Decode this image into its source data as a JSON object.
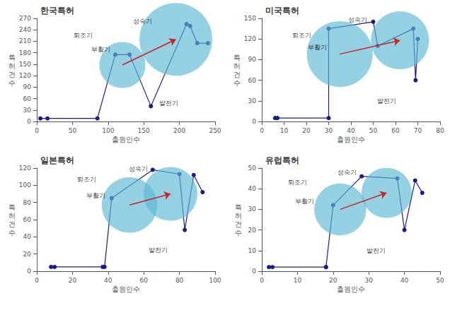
{
  "chart_data": [
    {
      "type": "line",
      "title": "한국특허",
      "xlabel": "출원인수",
      "ylabel": "특\n허\n건\n수",
      "xlim": [
        0,
        250
      ],
      "ylim": [
        0,
        270
      ],
      "xticks": [
        0,
        50,
        100,
        150,
        200,
        250
      ],
      "yticks": [
        0,
        30,
        60,
        90,
        120,
        150,
        180,
        210,
        240,
        270
      ],
      "grid": false,
      "series": [
        {
          "type": "line",
          "color": "#1a1a8c",
          "marker": "circle",
          "x": [
            5,
            15,
            85,
            110,
            130,
            160,
            210,
            215,
            225,
            240
          ],
          "values": [
            8,
            8,
            8,
            175,
            175,
            40,
            255,
            250,
            205,
            205
          ]
        },
        {
          "type": "scatter",
          "color": "#5bb8d4",
          "marker": "circle",
          "x": [
            120,
            195
          ],
          "values": [
            148,
            215
          ],
          "size": [
            2200,
            5500
          ]
        }
      ],
      "arrows": [
        {
          "from": [
            120,
            148
          ],
          "to": [
            195,
            215
          ],
          "color": "#cc2222"
        }
      ],
      "annotations": [
        {
          "text": "성숙기",
          "x": 148,
          "y": 262
        },
        {
          "text": "퇴조기",
          "x": 65,
          "y": 225
        },
        {
          "text": "부활기",
          "x": 90,
          "y": 188
        },
        {
          "text": "발전기",
          "x": 185,
          "y": 48
        }
      ]
    },
    {
      "type": "line",
      "title": "미국특허",
      "xlabel": "출원인수",
      "ylabel": "특\n허\n건\n수",
      "xlim": [
        0,
        80
      ],
      "ylim": [
        0,
        150
      ],
      "xticks": [
        0,
        10,
        20,
        30,
        40,
        50,
        60,
        70,
        80
      ],
      "yticks": [
        0,
        30,
        60,
        90,
        120,
        150
      ],
      "grid": false,
      "series": [
        {
          "type": "line",
          "color": "#1a1a8c",
          "marker": "circle",
          "x": [
            6,
            7,
            30,
            30,
            50,
            52,
            68,
            69,
            70
          ],
          "values": [
            5,
            5,
            5,
            135,
            145,
            110,
            135,
            60,
            120
          ]
        },
        {
          "type": "scatter",
          "color": "#5bb8d4",
          "marker": "circle",
          "x": [
            35,
            62
          ],
          "values": [
            98,
            118
          ],
          "size": [
            4500,
            3500
          ]
        }
      ],
      "arrows": [
        {
          "from": [
            35,
            98
          ],
          "to": [
            62,
            118
          ],
          "color": "#cc2222"
        }
      ],
      "annotations": [
        {
          "text": "성숙기",
          "x": 43,
          "y": 148
        },
        {
          "text": "퇴조기",
          "x": 18,
          "y": 125
        },
        {
          "text": "부활기",
          "x": 25,
          "y": 108
        },
        {
          "text": "발전기",
          "x": 56,
          "y": 30
        }
      ]
    },
    {
      "type": "line",
      "title": "일본특허",
      "xlabel": "출원인수",
      "ylabel": "특\n허\n건\n수",
      "xlim": [
        0,
        100
      ],
      "ylim": [
        0,
        120
      ],
      "xticks": [
        0,
        20,
        40,
        60,
        80,
        100
      ],
      "yticks": [
        0,
        20,
        40,
        60,
        80,
        100,
        120
      ],
      "grid": false,
      "series": [
        {
          "type": "line",
          "color": "#1a1a8c",
          "marker": "circle",
          "x": [
            8,
            10,
            37,
            38,
            42,
            65,
            80,
            83,
            88,
            93
          ],
          "values": [
            5,
            5,
            5,
            5,
            85,
            118,
            113,
            48,
            112,
            92
          ]
        },
        {
          "type": "scatter",
          "color": "#5bb8d4",
          "marker": "circle",
          "x": [
            52,
            75
          ],
          "values": [
            77,
            90
          ],
          "size": [
            3200,
            3000
          ]
        }
      ],
      "arrows": [
        {
          "from": [
            52,
            77
          ],
          "to": [
            75,
            90
          ],
          "color": "#cc2222"
        }
      ],
      "annotations": [
        {
          "text": "성숙기",
          "x": 57,
          "y": 119
        },
        {
          "text": "퇴조기",
          "x": 28,
          "y": 107
        },
        {
          "text": "부활기",
          "x": 33,
          "y": 88
        },
        {
          "text": "발전기",
          "x": 68,
          "y": 25
        }
      ]
    },
    {
      "type": "line",
      "title": "유럽특허",
      "xlabel": "출원인수",
      "ylabel": "특\n허\n건\n수",
      "xlim": [
        0,
        50
      ],
      "ylim": [
        0,
        50
      ],
      "xticks": [
        0,
        10,
        20,
        30,
        40,
        50
      ],
      "yticks": [
        0,
        10,
        20,
        30,
        40,
        50
      ],
      "grid": false,
      "series": [
        {
          "type": "line",
          "color": "#1a1a8c",
          "marker": "circle",
          "x": [
            2,
            3,
            18,
            18,
            20,
            28,
            38,
            40,
            43,
            45
          ],
          "values": [
            2,
            2,
            2,
            2,
            32,
            46,
            45,
            20,
            44,
            38
          ]
        },
        {
          "type": "scatter",
          "color": "#5bb8d4",
          "marker": "circle",
          "x": [
            22,
            35
          ],
          "values": [
            30,
            38
          ],
          "size": [
            2800,
            2600
          ]
        }
      ],
      "arrows": [
        {
          "from": [
            22,
            30
          ],
          "to": [
            35,
            38
          ],
          "color": "#cc2222"
        }
      ],
      "annotations": [
        {
          "text": "성숙기",
          "x": 24,
          "y": 48
        },
        {
          "text": "퇴조기",
          "x": 10,
          "y": 43
        },
        {
          "text": "부활기",
          "x": 12,
          "y": 34
        },
        {
          "text": "발전기",
          "x": 32,
          "y": 10
        }
      ]
    }
  ]
}
